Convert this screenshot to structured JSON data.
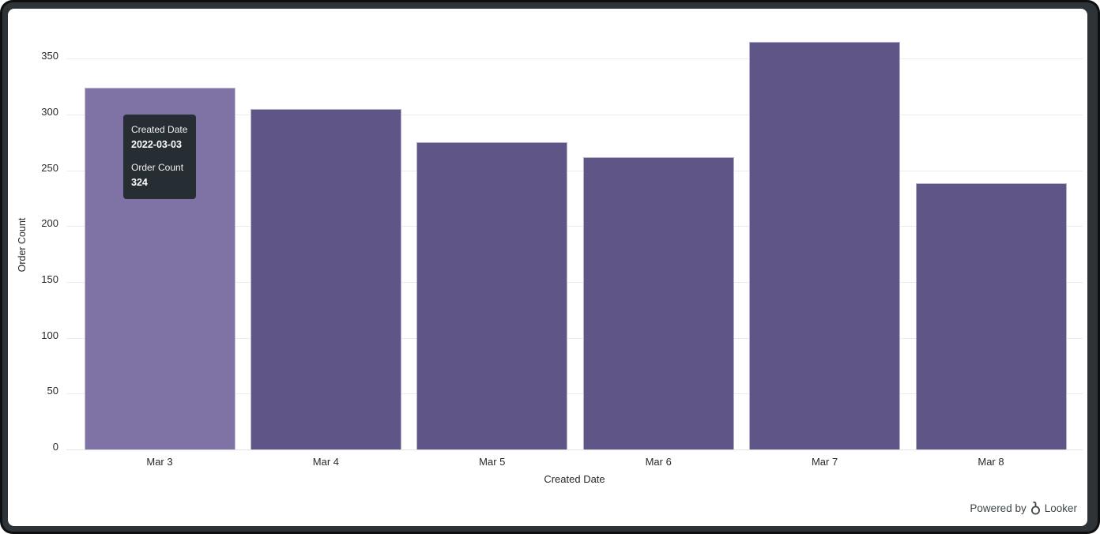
{
  "window": {
    "frame_color": "#0d0f10",
    "frame_inner_color": "#2d3336",
    "canvas_color": "#ffffff"
  },
  "chart_data": {
    "type": "bar",
    "title": "",
    "xlabel": "Created Date",
    "ylabel": "Order Count",
    "categories": [
      "Mar 3",
      "Mar 4",
      "Mar 5",
      "Mar 6",
      "Mar 7",
      "Mar 8"
    ],
    "values": [
      324,
      305,
      275,
      262,
      365,
      238
    ],
    "yticks": [
      0,
      50,
      100,
      150,
      200,
      250,
      300,
      350
    ],
    "ylim": [
      0,
      375
    ],
    "grid": true,
    "legend_position": "none",
    "bar_color": "#5f5687",
    "bar_hover_color": "#7e73a4",
    "highlighted_index": 0
  },
  "tooltip": {
    "dimension_label": "Created Date",
    "dimension_value": "2022-03-03",
    "measure_label": "Order Count",
    "measure_value": "324",
    "background": "#262d33"
  },
  "footer": {
    "powered_by": "Powered by",
    "brand": "Looker"
  }
}
